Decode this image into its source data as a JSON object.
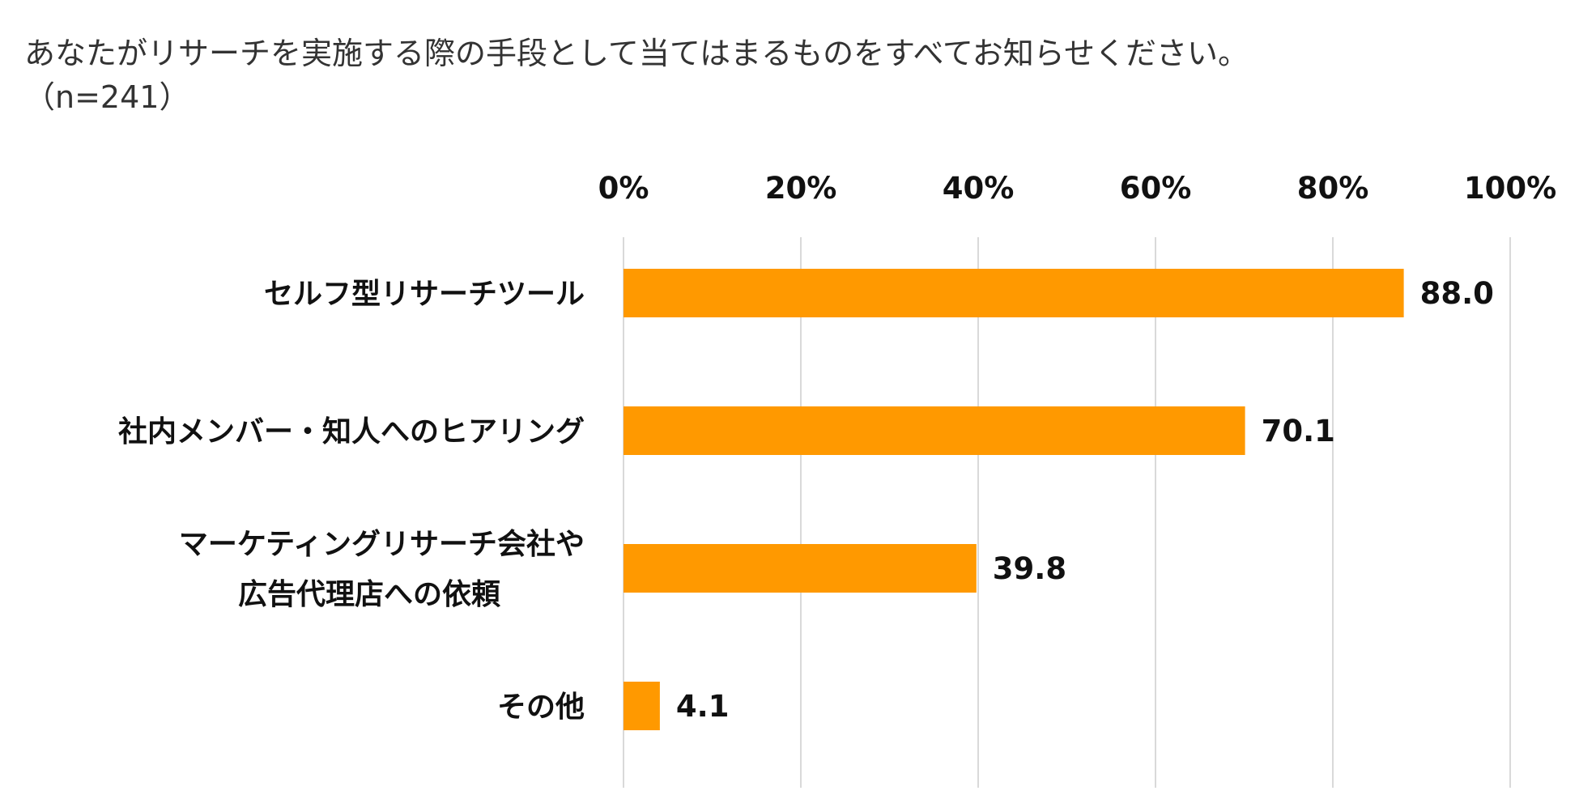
{
  "chart_data": {
    "type": "bar",
    "orientation": "horizontal",
    "title": "あなたがリサーチを実施する際の手段として当てはまるものをすべてお知らせください。",
    "subtitle": "（n=241）",
    "categories": [
      [
        "セルフ型リサーチツール"
      ],
      [
        "社内メンバー・知人へのヒアリング"
      ],
      [
        "マーケティングリサーチ会社や",
        "広告代理店への依頼"
      ],
      [
        "その他"
      ]
    ],
    "values": [
      88.0,
      70.1,
      39.8,
      4.1
    ],
    "value_labels": [
      "88.0",
      "70.1",
      "39.8",
      "4.1"
    ],
    "xlim": [
      0,
      100
    ],
    "xticks": [
      0,
      20,
      40,
      60,
      80,
      100
    ],
    "xtick_labels": [
      "0%",
      "20%",
      "40%",
      "60%",
      "80%",
      "100%"
    ],
    "axis_position": "top",
    "grid": true,
    "bar_color": "#FF9900",
    "grid_color": "#d9d9d9"
  }
}
